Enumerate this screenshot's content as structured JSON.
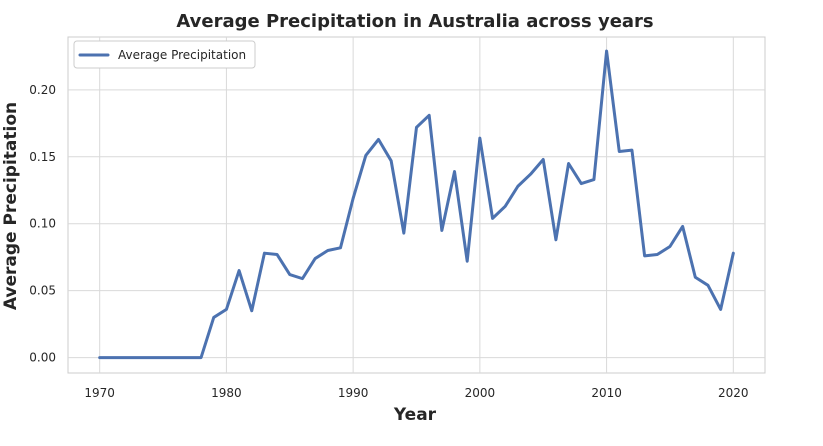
{
  "chart_data": {
    "type": "line",
    "title": "Average Precipitation in Australia across years",
    "xlabel": "Year",
    "ylabel": "Average Precipitation",
    "xlim": [
      1967.5,
      2022.5
    ],
    "ylim": [
      -0.0115,
      0.2395
    ],
    "x_ticks": [
      1970,
      1980,
      1990,
      2000,
      2010,
      2020
    ],
    "y_ticks": [
      "0.00",
      "0.05",
      "0.10",
      "0.15",
      "0.20"
    ],
    "grid": true,
    "legend_position": "upper-left",
    "series": [
      {
        "name": "Average Precipitation",
        "color": "#4c72b0",
        "x": [
          1970,
          1971,
          1972,
          1973,
          1974,
          1975,
          1976,
          1977,
          1978,
          1979,
          1980,
          1981,
          1982,
          1983,
          1984,
          1985,
          1986,
          1987,
          1988,
          1989,
          1990,
          1991,
          1992,
          1993,
          1994,
          1995,
          1996,
          1997,
          1998,
          1999,
          2000,
          2001,
          2002,
          2003,
          2004,
          2005,
          2006,
          2007,
          2008,
          2009,
          2010,
          2011,
          2012,
          2013,
          2014,
          2015,
          2016,
          2017,
          2018,
          2019,
          2020
        ],
        "y": [
          0.0,
          0.0,
          0.0,
          0.0,
          0.0,
          0.0,
          0.0,
          0.0,
          0.0,
          0.03,
          0.036,
          0.065,
          0.035,
          0.078,
          0.077,
          0.062,
          0.059,
          0.074,
          0.08,
          0.082,
          0.119,
          0.151,
          0.163,
          0.147,
          0.093,
          0.172,
          0.181,
          0.095,
          0.139,
          0.072,
          0.164,
          0.104,
          0.113,
          0.128,
          0.137,
          0.148,
          0.088,
          0.145,
          0.13,
          0.133,
          0.229,
          0.154,
          0.155,
          0.076,
          0.077,
          0.083,
          0.098,
          0.06,
          0.054,
          0.036,
          0.078
        ]
      }
    ]
  }
}
